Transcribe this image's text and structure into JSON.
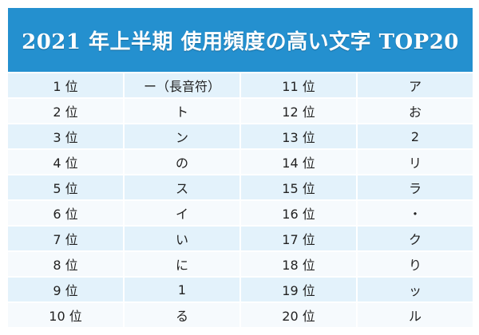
{
  "title": "2021 年上半期 使用頻度の高い文字 TOP20",
  "colors": {
    "header": "#2490cf",
    "row_odd": "#e3f2fb",
    "row_even": "#f6fafd"
  },
  "rows": [
    {
      "rank_a": "1 位",
      "char_a": "ー（長音符）",
      "rank_b": "11 位",
      "char_b": "ア"
    },
    {
      "rank_a": "2 位",
      "char_a": "ト",
      "rank_b": "12 位",
      "char_b": "お"
    },
    {
      "rank_a": "3 位",
      "char_a": "ン",
      "rank_b": "13 位",
      "char_b": "2"
    },
    {
      "rank_a": "4 位",
      "char_a": "の",
      "rank_b": "14 位",
      "char_b": "リ"
    },
    {
      "rank_a": "5 位",
      "char_a": "ス",
      "rank_b": "15 位",
      "char_b": "ラ"
    },
    {
      "rank_a": "6 位",
      "char_a": "イ",
      "rank_b": "16 位",
      "char_b": "・"
    },
    {
      "rank_a": "7 位",
      "char_a": "い",
      "rank_b": "17 位",
      "char_b": "ク"
    },
    {
      "rank_a": "8 位",
      "char_a": "に",
      "rank_b": "18 位",
      "char_b": "り"
    },
    {
      "rank_a": "9 位",
      "char_a": "1",
      "rank_b": "19 位",
      "char_b": "ッ"
    },
    {
      "rank_a": "10 位",
      "char_a": "る",
      "rank_b": "20 位",
      "char_b": "ル"
    }
  ]
}
